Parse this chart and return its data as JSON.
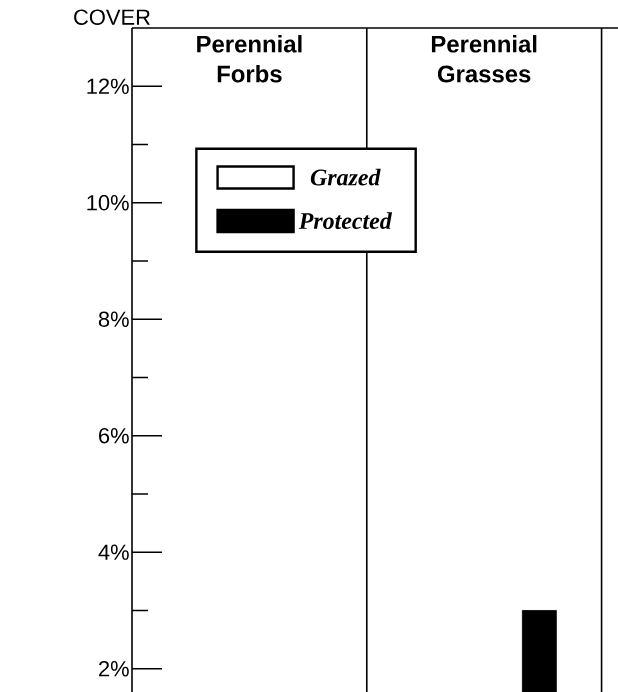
{
  "chart_data": {
    "type": "bar",
    "ylabel": "COVER",
    "categories": [
      "Perennial Forbs",
      "Perennial Grasses",
      null
    ],
    "series": [
      {
        "name": "Grazed",
        "color": "#ffffff",
        "values": [
          null,
          null,
          null
        ]
      },
      {
        "name": "Protected",
        "color": "#000000",
        "values": [
          null,
          3,
          null
        ]
      }
    ],
    "ylim": [
      1.6,
      13
    ],
    "yticks": [
      {
        "value": 2,
        "label": "2%"
      },
      {
        "value": 3,
        "label": null
      },
      {
        "value": 4,
        "label": "4%"
      },
      {
        "value": 5,
        "label": null
      },
      {
        "value": 6,
        "label": "6%"
      },
      {
        "value": 7,
        "label": null
      },
      {
        "value": 8,
        "label": "8%"
      },
      {
        "value": 9,
        "label": null
      },
      {
        "value": 10,
        "label": "10%"
      },
      {
        "value": 11,
        "label": null
      },
      {
        "value": 12,
        "label": "12%"
      }
    ],
    "legend": "top left"
  }
}
